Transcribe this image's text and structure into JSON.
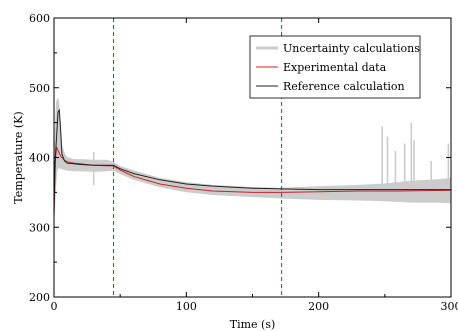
{
  "chart_data": {
    "type": "line",
    "xlabel": "Time (s)",
    "ylabel": "Temperature (K)",
    "xlim": [
      0,
      300
    ],
    "ylim": [
      200,
      600
    ],
    "xticks": [
      0,
      100,
      200,
      300
    ],
    "yticks": [
      200,
      300,
      400,
      500,
      600
    ],
    "xtick_labels": [
      "0",
      "100",
      "200",
      "300"
    ],
    "ytick_labels": [
      "200",
      "300",
      "400",
      "500",
      "600"
    ],
    "grid": false,
    "legend_position": "top-right",
    "vertical_lines": [
      {
        "x": 45,
        "color": "#3344cc",
        "style": "dashed"
      },
      {
        "x": 172,
        "color": "#3344cc",
        "style": "dashed"
      }
    ],
    "series": [
      {
        "name": "Uncertainty calculations",
        "color": "#cccccc",
        "kind": "band",
        "x": [
          0,
          1,
          2,
          3,
          4,
          5,
          6,
          8,
          10,
          15,
          20,
          30,
          40,
          45,
          50,
          60,
          80,
          100,
          120,
          150,
          172,
          200,
          230,
          250,
          270,
          290,
          300
        ],
        "lower": [
          315,
          350,
          380,
          385,
          385,
          385,
          384,
          383,
          382,
          381,
          381,
          380,
          381,
          382,
          377,
          369,
          358,
          351,
          347,
          344,
          342,
          340,
          339,
          338,
          336,
          336,
          335
        ],
        "upper": [
          330,
          440,
          480,
          485,
          470,
          440,
          415,
          405,
          400,
          397,
          397,
          396,
          396,
          393,
          387,
          381,
          370,
          364,
          360,
          357,
          356,
          358,
          360,
          362,
          366,
          368,
          370
        ],
        "spikes": [
          [
            30,
            408
          ],
          [
            248,
            445
          ],
          [
            252,
            430
          ],
          [
            258,
            410
          ],
          [
            265,
            420
          ],
          [
            270,
            450
          ],
          [
            272,
            425
          ],
          [
            285,
            395
          ],
          [
            298,
            420
          ]
        ]
      },
      {
        "name": "Experimental data",
        "color": "#cc2222",
        "x": [
          0,
          1,
          2,
          3,
          5,
          8,
          10,
          15,
          20,
          30,
          40,
          45,
          50,
          60,
          80,
          100,
          120,
          150,
          172,
          200,
          230,
          260,
          300
        ],
        "y": [
          310,
          395,
          415,
          410,
          402,
          396,
          394,
          392,
          391,
          389,
          388,
          388,
          382,
          373,
          362,
          356,
          352,
          350,
          350,
          351,
          352,
          352,
          353
        ]
      },
      {
        "name": "Reference calculation",
        "color": "#222222",
        "x": [
          0,
          1,
          2,
          3,
          4,
          5,
          6,
          8,
          10,
          15,
          20,
          30,
          40,
          45,
          50,
          60,
          80,
          100,
          120,
          150,
          172,
          200,
          230,
          260,
          300
        ],
        "y": [
          330,
          400,
          430,
          465,
          468,
          440,
          405,
          395,
          392,
          391,
          390,
          389,
          389,
          389,
          384,
          377,
          368,
          362,
          359,
          356,
          355,
          354,
          354,
          354,
          354
        ]
      }
    ]
  }
}
